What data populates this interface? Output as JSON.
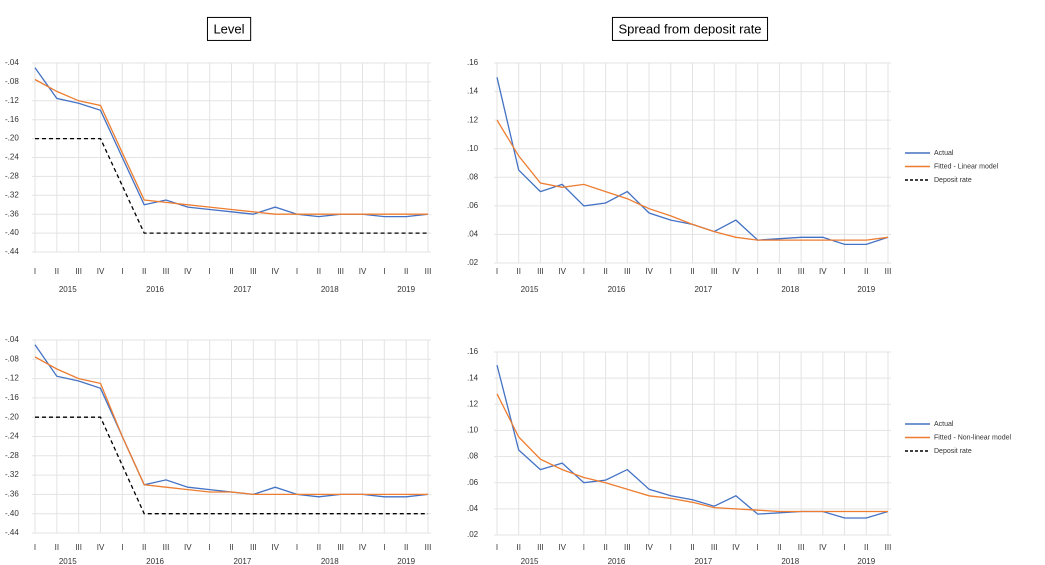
{
  "chart_data": [
    {
      "type": "line",
      "title": "Level",
      "categories": [
        "I",
        "II",
        "III",
        "IV",
        "I",
        "II",
        "III",
        "IV",
        "I",
        "II",
        "III",
        "IV",
        "I",
        "II",
        "III",
        "IV",
        "I",
        "II",
        "III"
      ],
      "years": [
        "2015",
        "2016",
        "2017",
        "2018",
        "2019"
      ],
      "ylim": [
        -0.44,
        -0.04
      ],
      "yticks": [
        {
          "value": -0.04,
          "label": "-.04"
        },
        {
          "value": -0.08,
          "label": "-.08"
        },
        {
          "value": -0.12,
          "label": "-.12"
        },
        {
          "value": -0.16,
          "label": "-.16"
        },
        {
          "value": -0.2,
          "label": "-.20"
        },
        {
          "value": -0.24,
          "label": "-.24"
        },
        {
          "value": -0.28,
          "label": "-.28"
        },
        {
          "value": -0.32,
          "label": "-.32"
        },
        {
          "value": -0.36,
          "label": "-.36"
        },
        {
          "value": -0.4,
          "label": "-.40"
        },
        {
          "value": -0.44,
          "label": "-.44"
        }
      ],
      "grid": true,
      "series": [
        {
          "name": "Actual",
          "color": "#4472c4",
          "values": [
            -0.05,
            -0.115,
            -0.125,
            -0.14,
            -0.24,
            -0.34,
            -0.33,
            -0.345,
            -0.35,
            -0.355,
            -0.36,
            -0.345,
            -0.36,
            -0.365,
            -0.36,
            -0.36,
            -0.365,
            -0.365,
            -0.36
          ]
        },
        {
          "name": "Fitted - Linear model",
          "color": "#ed7d31",
          "values": [
            -0.075,
            -0.1,
            -0.12,
            -0.13,
            -0.23,
            -0.33,
            -0.335,
            -0.34,
            -0.345,
            -0.35,
            -0.355,
            -0.36,
            -0.36,
            -0.36,
            -0.36,
            -0.36,
            -0.36,
            -0.36,
            -0.36
          ]
        },
        {
          "name": "Deposit rate",
          "color": "#000000",
          "dashed": true,
          "values": [
            -0.2,
            -0.2,
            -0.2,
            -0.2,
            -0.3,
            -0.4,
            -0.4,
            -0.4,
            -0.4,
            -0.4,
            -0.4,
            -0.4,
            -0.4,
            -0.4,
            -0.4,
            -0.4,
            -0.4,
            -0.4,
            -0.4
          ]
        }
      ]
    },
    {
      "type": "line",
      "title": "Spread from deposit rate",
      "categories": [
        "I",
        "II",
        "III",
        "IV",
        "I",
        "II",
        "III",
        "IV",
        "I",
        "II",
        "III",
        "IV",
        "I",
        "II",
        "III",
        "IV",
        "I",
        "II",
        "III"
      ],
      "years": [
        "2015",
        "2016",
        "2017",
        "2018",
        "2019"
      ],
      "ylim": [
        0.02,
        0.16
      ],
      "yticks": [
        {
          "value": 0.02,
          "label": ".02"
        },
        {
          "value": 0.04,
          "label": ".04"
        },
        {
          "value": 0.06,
          "label": ".06"
        },
        {
          "value": 0.08,
          "label": ".08"
        },
        {
          "value": 0.1,
          "label": ".10"
        },
        {
          "value": 0.12,
          "label": ".12"
        },
        {
          "value": 0.14,
          "label": ".14"
        },
        {
          "value": 0.16,
          "label": ".16"
        }
      ],
      "grid": true,
      "series": [
        {
          "color": "#4472c4",
          "values": [
            0.15,
            0.085,
            0.07,
            0.075,
            0.06,
            0.062,
            0.07,
            0.055,
            0.05,
            0.047,
            0.042,
            0.05,
            0.036,
            0.037,
            0.038,
            0.038,
            0.033,
            0.033,
            0.038
          ]
        },
        {
          "color": "#ed7d31",
          "values": [
            0.12,
            0.095,
            0.076,
            0.073,
            0.075,
            0.07,
            0.065,
            0.058,
            0.053,
            0.047,
            0.042,
            0.038,
            0.036,
            0.036,
            0.036,
            0.036,
            0.036,
            0.036,
            0.038
          ]
        }
      ]
    },
    {
      "type": "line",
      "categories": [
        "I",
        "II",
        "III",
        "IV",
        "I",
        "II",
        "III",
        "IV",
        "I",
        "II",
        "III",
        "IV",
        "I",
        "II",
        "III",
        "IV",
        "I",
        "II",
        "III"
      ],
      "years": [
        "2015",
        "2016",
        "2017",
        "2018",
        "2019"
      ],
      "ylim": [
        -0.44,
        -0.04
      ],
      "yticks": [
        {
          "value": -0.04,
          "label": "-.04"
        },
        {
          "value": -0.08,
          "label": "-.08"
        },
        {
          "value": -0.12,
          "label": "-.12"
        },
        {
          "value": -0.16,
          "label": "-.16"
        },
        {
          "value": -0.2,
          "label": "-.20"
        },
        {
          "value": -0.24,
          "label": "-.24"
        },
        {
          "value": -0.28,
          "label": "-.28"
        },
        {
          "value": -0.32,
          "label": "-.32"
        },
        {
          "value": -0.36,
          "label": "-.36"
        },
        {
          "value": -0.4,
          "label": "-.40"
        },
        {
          "value": -0.44,
          "label": "-.44"
        }
      ],
      "grid": true,
      "series": [
        {
          "name": "Actual",
          "color": "#4472c4",
          "values": [
            -0.05,
            -0.115,
            -0.125,
            -0.14,
            -0.24,
            -0.34,
            -0.33,
            -0.345,
            -0.35,
            -0.355,
            -0.36,
            -0.345,
            -0.36,
            -0.365,
            -0.36,
            -0.36,
            -0.365,
            -0.365,
            -0.36
          ]
        },
        {
          "name": "Fitted - Non-linear model",
          "color": "#ed7d31",
          "values": [
            -0.075,
            -0.1,
            -0.12,
            -0.13,
            -0.24,
            -0.34,
            -0.345,
            -0.35,
            -0.355,
            -0.355,
            -0.36,
            -0.36,
            -0.36,
            -0.36,
            -0.36,
            -0.36,
            -0.36,
            -0.36,
            -0.36
          ]
        },
        {
          "name": "Deposit rate",
          "color": "#000000",
          "dashed": true,
          "values": [
            -0.2,
            -0.2,
            -0.2,
            -0.2,
            -0.3,
            -0.4,
            -0.4,
            -0.4,
            -0.4,
            -0.4,
            -0.4,
            -0.4,
            -0.4,
            -0.4,
            -0.4,
            -0.4,
            -0.4,
            -0.4,
            -0.4
          ]
        }
      ]
    },
    {
      "type": "line",
      "categories": [
        "I",
        "II",
        "III",
        "IV",
        "I",
        "II",
        "III",
        "IV",
        "I",
        "II",
        "III",
        "IV",
        "I",
        "II",
        "III",
        "IV",
        "I",
        "II",
        "III"
      ],
      "years": [
        "2015",
        "2016",
        "2017",
        "2018",
        "2019"
      ],
      "ylim": [
        0.02,
        0.16
      ],
      "yticks": [
        {
          "value": 0.02,
          "label": ".02"
        },
        {
          "value": 0.04,
          "label": ".04"
        },
        {
          "value": 0.06,
          "label": ".06"
        },
        {
          "value": 0.08,
          "label": ".08"
        },
        {
          "value": 0.1,
          "label": ".10"
        },
        {
          "value": 0.12,
          "label": ".12"
        },
        {
          "value": 0.14,
          "label": ".14"
        },
        {
          "value": 0.16,
          "label": ".16"
        }
      ],
      "grid": true,
      "series": [
        {
          "color": "#4472c4",
          "values": [
            0.15,
            0.085,
            0.07,
            0.075,
            0.06,
            0.062,
            0.07,
            0.055,
            0.05,
            0.047,
            0.042,
            0.05,
            0.036,
            0.037,
            0.038,
            0.038,
            0.033,
            0.033,
            0.038
          ]
        },
        {
          "color": "#ed7d31",
          "values": [
            0.128,
            0.095,
            0.078,
            0.07,
            0.064,
            0.06,
            0.055,
            0.05,
            0.048,
            0.045,
            0.041,
            0.04,
            0.039,
            0.038,
            0.038,
            0.038,
            0.038,
            0.038,
            0.038
          ]
        }
      ]
    }
  ]
}
